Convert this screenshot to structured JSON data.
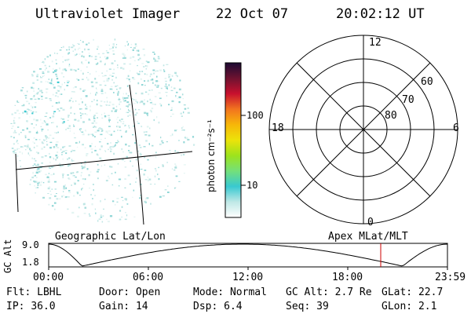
{
  "header": {
    "title": "Ultraviolet Imager",
    "date": "22 Oct 07",
    "time": "20:02:12 UT"
  },
  "colorbar": {
    "unit_label": "photon cm⁻²s⁻¹",
    "ticks": [
      "100",
      "10"
    ],
    "colors": [
      "#ffffff",
      "#bfe8e6",
      "#39c9d1",
      "#74e07a",
      "#9de31c",
      "#ece30a",
      "#f7b709",
      "#f2741f",
      "#c8102e",
      "#6e1230",
      "#1c0a33"
    ]
  },
  "polar": {
    "mlt_labels": {
      "top": "12",
      "left": "18",
      "right": "6",
      "bottom": "0"
    },
    "lat_labels": [
      "60",
      "70",
      "80"
    ]
  },
  "labels": {
    "left_plot": "Geographic Lat/Lon",
    "right_plot": "Apex MLat/MLT"
  },
  "orbit": {
    "ylabel": "GC Alt",
    "y_ticks": [
      "9.0",
      "1.8"
    ],
    "x_ticks": [
      "00:00",
      "06:00",
      "12:00",
      "18:00",
      "23:59"
    ],
    "marker_color": "#cc0000"
  },
  "info": {
    "row1": [
      {
        "key": "Flt:",
        "value": "LBHL"
      },
      {
        "key": "Door:",
        "value": "Open"
      },
      {
        "key": "Mode:",
        "value": "Normal"
      },
      {
        "key": "GC Alt:",
        "value": "2.7 Re"
      },
      {
        "key": "GLat:",
        "value": "22.7"
      }
    ],
    "row2": [
      {
        "key": "IP:",
        "value": "36.0"
      },
      {
        "key": "Gain:",
        "value": "14"
      },
      {
        "key": "Dsp:",
        "value": "6.4"
      },
      {
        "key": "Seq:",
        "value": "39"
      },
      {
        "key": "GLon:",
        "value": "2.1"
      }
    ]
  }
}
